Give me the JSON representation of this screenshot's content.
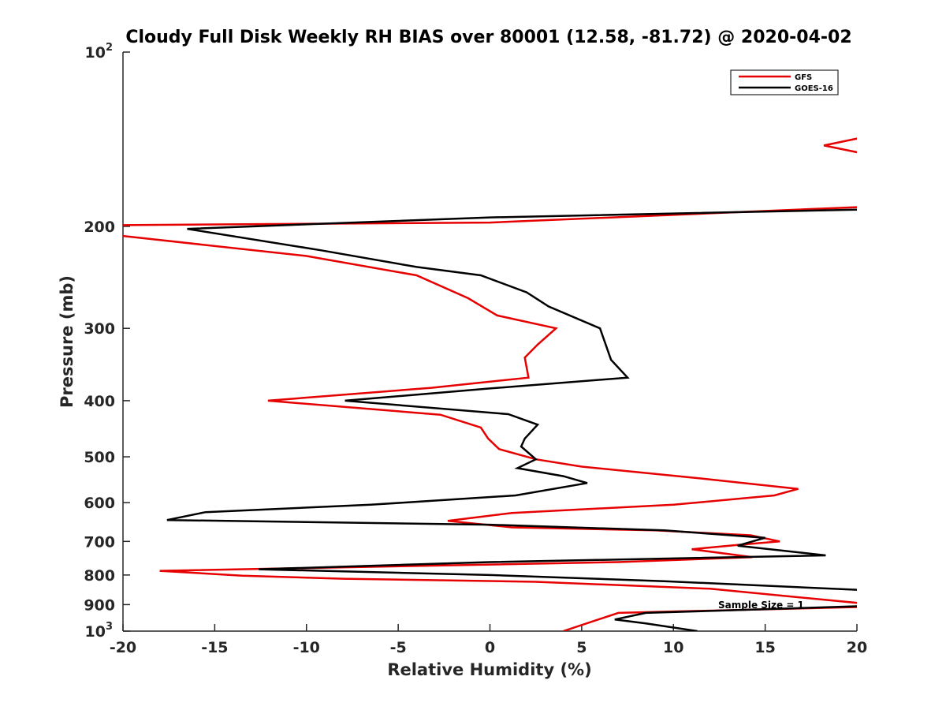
{
  "chart_data": {
    "type": "line",
    "title": "Cloudy Full Disk Weekly RH BIAS over 80001 (12.58, -81.72) @ 2020-04-02",
    "xlabel": "Relative Humidity (%)",
    "ylabel": "Pressure (mb)",
    "xlim": [
      -20,
      20
    ],
    "ylim": [
      100,
      1000
    ],
    "y_scale": "log",
    "y_reversed": true,
    "x_ticks": [
      "-20",
      "-15",
      "-10",
      "-5",
      "0",
      "5",
      "10",
      "15",
      "20"
    ],
    "y_ticks": [
      {
        "value": 100,
        "base": "10",
        "exp": "2"
      },
      {
        "value": 200,
        "label": "200"
      },
      {
        "value": 300,
        "label": "300"
      },
      {
        "value": 400,
        "label": "400"
      },
      {
        "value": 500,
        "label": "500"
      },
      {
        "value": 600,
        "label": "600"
      },
      {
        "value": 700,
        "label": "700"
      },
      {
        "value": 800,
        "label": "800"
      },
      {
        "value": 900,
        "label": "900"
      },
      {
        "value": 1000,
        "base": "10",
        "exp": "3"
      }
    ],
    "legend_position": "top-right",
    "annotation": "Sample Size = 1",
    "series": [
      {
        "name": "GFS",
        "color": "#e60000",
        "points": [
          [
            20.5,
            140
          ],
          [
            18.2,
            145
          ],
          [
            20.5,
            150
          ],
          [
            20.5,
            185
          ],
          [
            0,
            197
          ],
          [
            -20.5,
            199
          ],
          [
            -20.5,
            207
          ],
          [
            -10,
            225
          ],
          [
            -4,
            243
          ],
          [
            -1.2,
            266
          ],
          [
            0.4,
            285
          ],
          [
            3.6,
            300
          ],
          [
            2.6,
            320
          ],
          [
            1.9,
            337
          ],
          [
            2.1,
            365
          ],
          [
            -3.2,
            380
          ],
          [
            -12.1,
            400
          ],
          [
            -2.7,
            423
          ],
          [
            -0.5,
            445
          ],
          [
            -0.1,
            465
          ],
          [
            0.5,
            485
          ],
          [
            2.5,
            505
          ],
          [
            5,
            520
          ],
          [
            11.5,
            545
          ],
          [
            16.8,
            568
          ],
          [
            15.5,
            583
          ],
          [
            10,
            605
          ],
          [
            1.2,
            625
          ],
          [
            -2.3,
            645
          ],
          [
            1.2,
            662
          ],
          [
            9,
            670
          ],
          [
            14.2,
            683
          ],
          [
            15.8,
            700
          ],
          [
            13.5,
            710
          ],
          [
            11,
            722
          ],
          [
            14.3,
            745
          ],
          [
            7,
            760
          ],
          [
            -18,
            787
          ],
          [
            -13.5,
            802
          ],
          [
            -8,
            812
          ],
          [
            2.5,
            822
          ],
          [
            12,
            845
          ],
          [
            20.5,
            897
          ],
          [
            20.5,
            908
          ],
          [
            7,
            930
          ],
          [
            4,
            1000
          ]
        ]
      },
      {
        "name": "GOES-16",
        "color": "#000000",
        "points": [
          [
            20.5,
            187
          ],
          [
            0,
            193
          ],
          [
            -16.5,
            202
          ],
          [
            -9.2,
            220
          ],
          [
            -4,
            235
          ],
          [
            -0.5,
            243
          ],
          [
            2,
            260
          ],
          [
            3.2,
            275
          ],
          [
            6,
            300
          ],
          [
            6.6,
            340
          ],
          [
            7.5,
            365
          ],
          [
            0,
            381
          ],
          [
            -7.9,
            400
          ],
          [
            1,
            422
          ],
          [
            2.6,
            440
          ],
          [
            1.9,
            465
          ],
          [
            1.7,
            480
          ],
          [
            2.5,
            505
          ],
          [
            1.5,
            523
          ],
          [
            4,
            540
          ],
          [
            5.3,
            555
          ],
          [
            1.4,
            583
          ],
          [
            -6.5,
            605
          ],
          [
            -15.5,
            623
          ],
          [
            -17.6,
            643
          ],
          [
            0,
            655
          ],
          [
            9.5,
            670
          ],
          [
            15,
            690
          ],
          [
            13.5,
            712
          ],
          [
            18.3,
            740
          ],
          [
            0,
            760
          ],
          [
            -12.6,
            782
          ],
          [
            0,
            800
          ],
          [
            9.5,
            820
          ],
          [
            20.5,
            850
          ],
          [
            20.5,
            905
          ],
          [
            8.5,
            930
          ],
          [
            6.8,
            955
          ],
          [
            8.5,
            970
          ],
          [
            11.3,
            1000
          ]
        ]
      }
    ]
  }
}
